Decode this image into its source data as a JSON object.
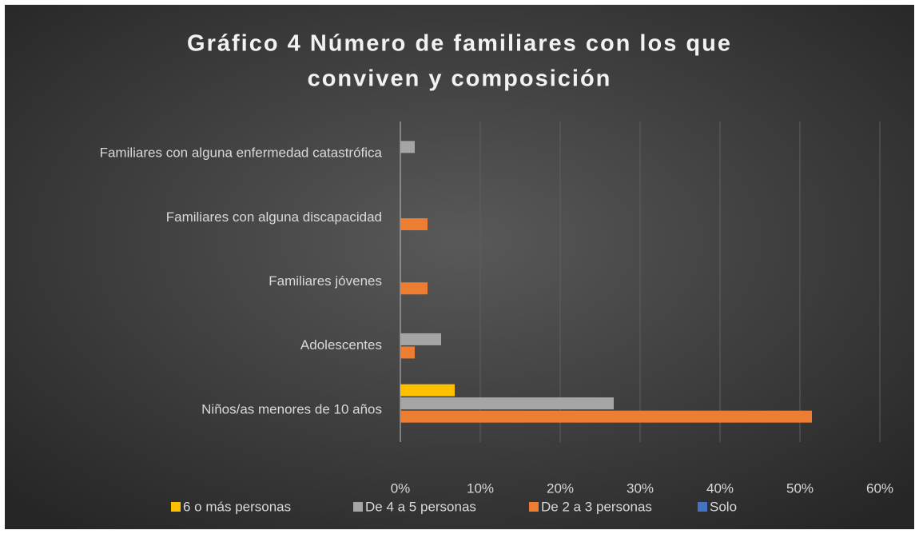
{
  "chart_data": {
    "type": "bar",
    "orientation": "horizontal",
    "title": [
      "Gráfico 4 Número de familiares con los que",
      "conviven y composición"
    ],
    "categories": [
      "Niños/as menores de 10 años",
      "Adolescentes",
      "Familiares jóvenes",
      "Familiares con alguna discapacidad",
      "Familiares con alguna enfermedad catastrófica"
    ],
    "series": [
      {
        "name": "6 o más personas",
        "color": "#ffc000",
        "values": [
          6.8,
          null,
          null,
          null,
          null
        ]
      },
      {
        "name": "De 4 a 5 personas",
        "color": "#a5a5a5",
        "values": [
          26.7,
          5.1,
          null,
          null,
          1.8
        ]
      },
      {
        "name": "De 2 a 3 personas",
        "color": "#ed7d31",
        "values": [
          51.5,
          1.8,
          3.4,
          3.4,
          null
        ]
      },
      {
        "name": "Solo",
        "color": "#4472c4",
        "values": [
          null,
          null,
          null,
          null,
          null
        ]
      }
    ],
    "xlim": [
      0,
      60
    ],
    "xticks": [
      {
        "value": 0,
        "label": "0%"
      },
      {
        "value": 10,
        "label": "10%"
      },
      {
        "value": 20,
        "label": "20%"
      },
      {
        "value": 30,
        "label": "30%"
      },
      {
        "value": 40,
        "label": "40%"
      },
      {
        "value": 50,
        "label": "50%"
      },
      {
        "value": 60,
        "label": "60%"
      }
    ],
    "grid": true,
    "legend": "bottom"
  }
}
